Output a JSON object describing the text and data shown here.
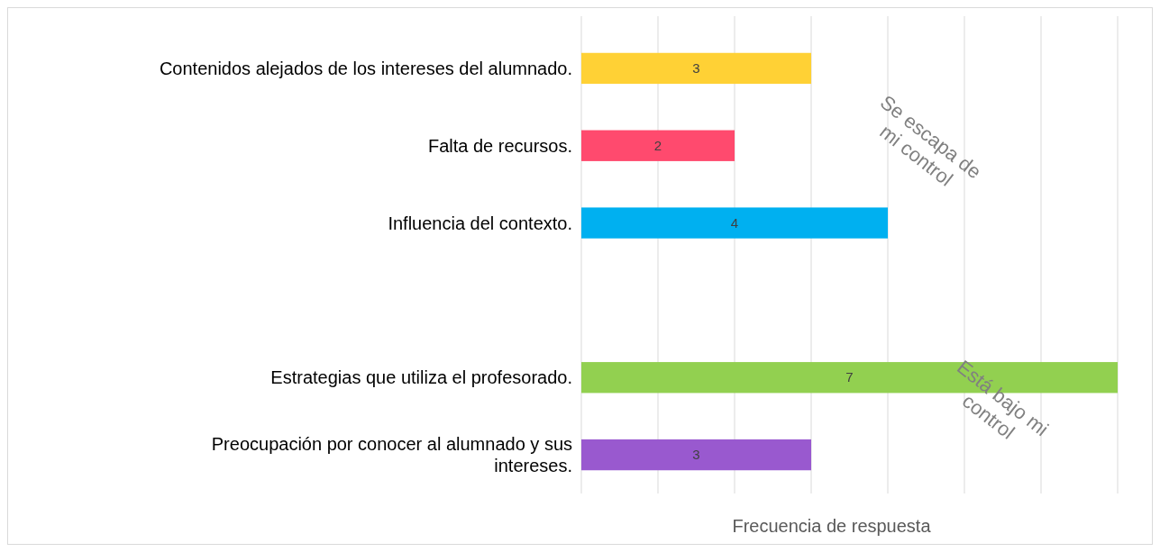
{
  "chart_data": {
    "type": "bar",
    "orientation": "horizontal",
    "xlabel": "Frecuencia de respuesta",
    "categories": [
      "Contenidos alejados de los intereses del alumnado.",
      "Falta de recursos.",
      "Influencia del contexto.",
      null,
      "Estrategias que utiliza el profesorado.",
      "Preocupación por conocer al alumnado y sus intereses."
    ],
    "values": [
      3,
      2,
      4,
      null,
      7,
      3
    ],
    "colors": [
      "#ffd135",
      "#ff4a6e",
      "#00b0f0",
      null,
      "#92d050",
      "#9959cf"
    ],
    "xlim": [
      0,
      7
    ],
    "grid": "x",
    "data_labels": true,
    "annotations": [
      "Se escapa de mi control",
      "Está bajo mi control"
    ]
  }
}
